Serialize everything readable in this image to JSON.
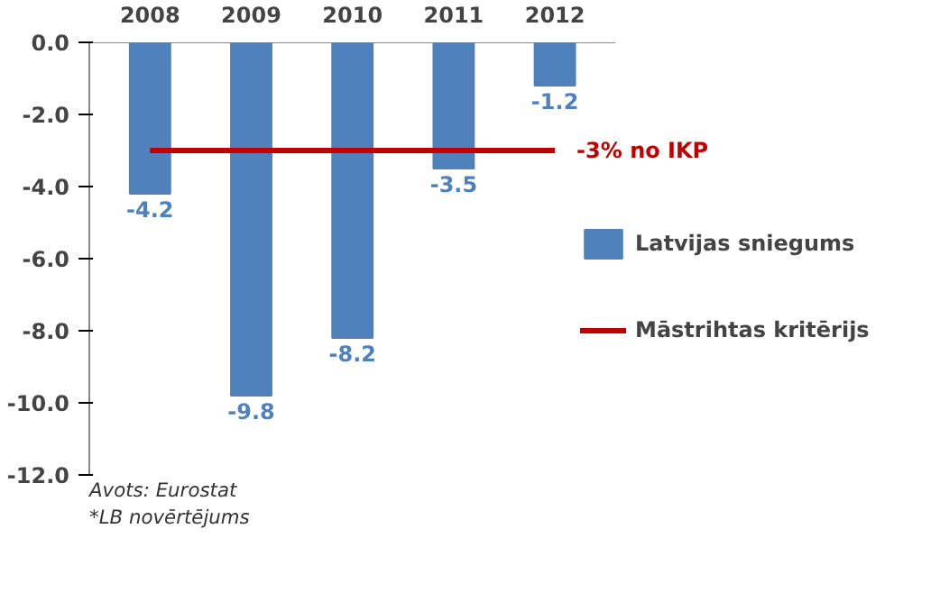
{
  "chart_data": {
    "type": "bar",
    "categories": [
      "2008",
      "2009",
      "2010",
      "2011",
      "2012"
    ],
    "series": [
      {
        "name": "Latvijas sniegums",
        "color": "#4f81bd",
        "values": [
          -4.2,
          -9.8,
          -8.2,
          -3.5,
          -1.2
        ],
        "value_labels": [
          "-4.2",
          "-9.8",
          "-8.2",
          "-3.5",
          "-1.2"
        ]
      },
      {
        "name": "Māstrihtas kritērijs",
        "type": "line",
        "color": "#c00000",
        "values": [
          -3,
          -3,
          -3,
          -3,
          -3
        ]
      }
    ],
    "ylim": [
      -12,
      0
    ],
    "yticks": [
      {
        "value": 0,
        "label": "0.0"
      },
      {
        "value": -2,
        "label": "-2.0"
      },
      {
        "value": -4,
        "label": "-4.0"
      },
      {
        "value": -6,
        "label": "-6.0"
      },
      {
        "value": -8,
        "label": "-8.0"
      },
      {
        "value": -10,
        "label": "-10.0"
      },
      {
        "value": -12,
        "label": "-12.0"
      }
    ],
    "legend": "right",
    "annotations": [
      {
        "text": "-3% no IKP",
        "x": "2012",
        "y": -3
      },
      "*LB novērtējums",
      "Avots: Eurostat"
    ]
  }
}
